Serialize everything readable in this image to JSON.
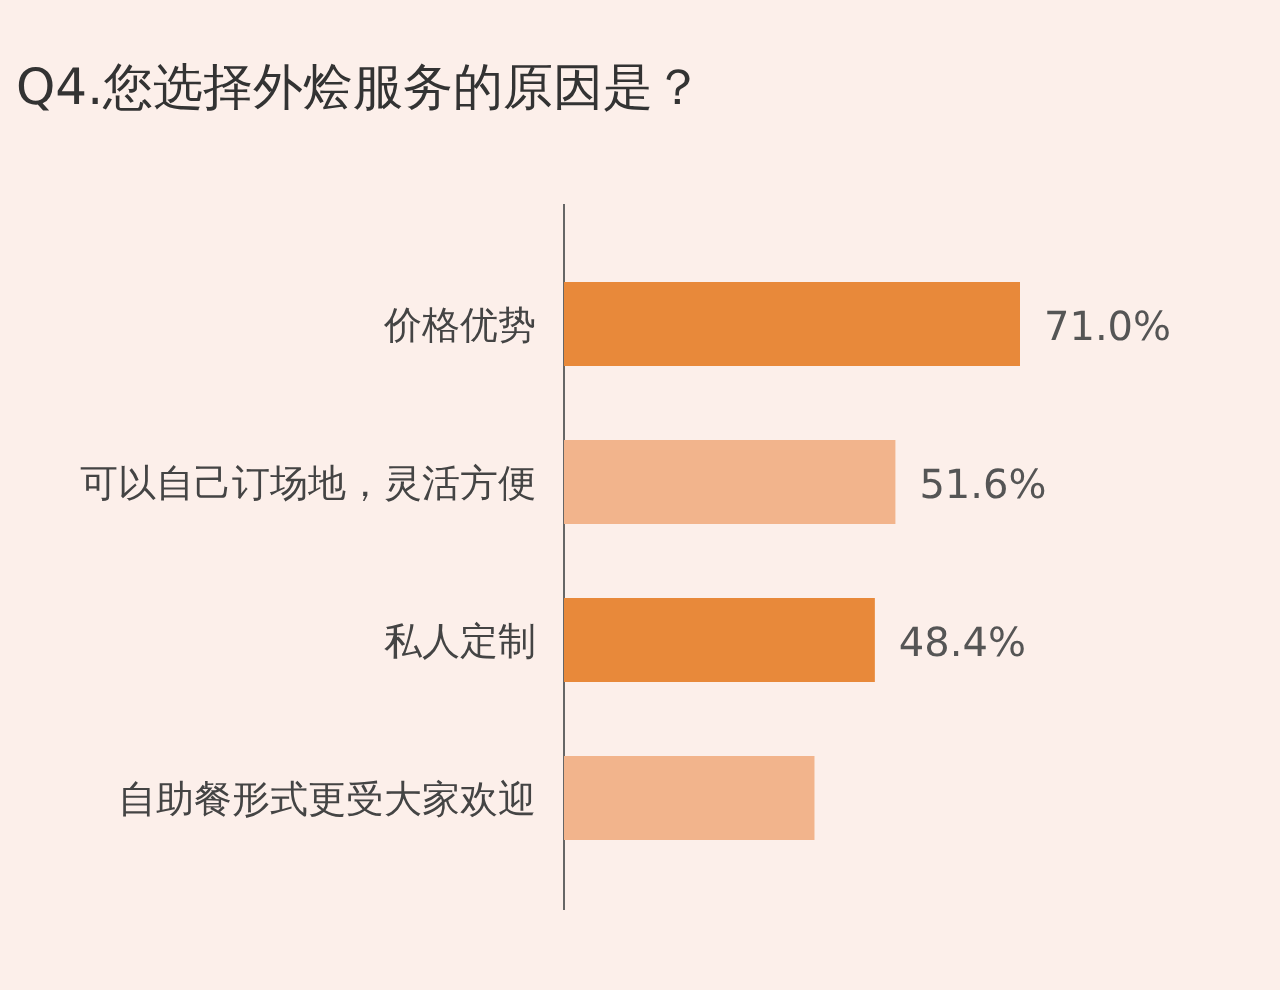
{
  "chart_data": {
    "type": "bar",
    "orientation": "horizontal",
    "title": "Q4.您选择外烩服务的原因是？",
    "categories": [
      "价格优势",
      "可以自己订场地，灵活方便",
      "私人定制",
      "自助餐形式更受大家欢迎"
    ],
    "values": [
      71.0,
      51.6,
      48.4,
      39
    ],
    "colors": [
      "#e8893a",
      "#f2b48c",
      "#e8893a",
      "#f2b48c"
    ],
    "value_labels": [
      "71.0%",
      "51.6%",
      "48.4%",
      null
    ]
  }
}
